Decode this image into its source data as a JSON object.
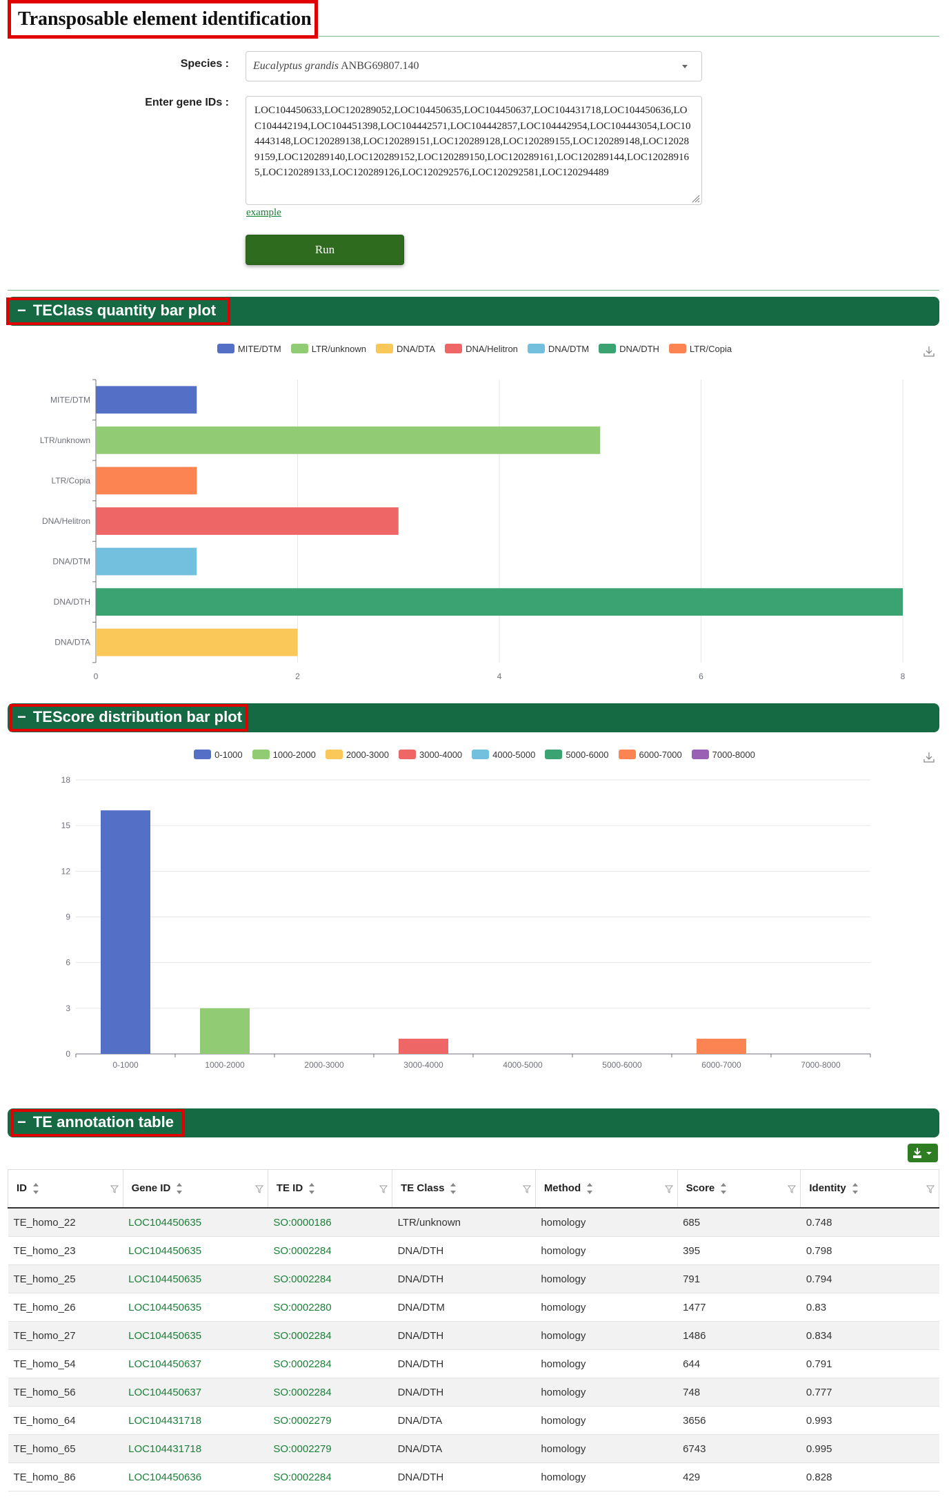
{
  "header": {
    "title": "Transposable element identification"
  },
  "form": {
    "species_label": "Species :",
    "species_value_italic": "Eucalyptus grandis",
    "species_value_rest": " ANBG69807.140",
    "gene_ids_label": "Enter gene IDs :",
    "gene_ids_value": "LOC104450633,LOC120289052,LOC104450635,LOC104450637,LOC104431718,LOC104450636,LOC104442194,LOC104451398,LOC104442571,LOC104442857,LOC104442954,LOC104443054,LOC104443148,LOC120289138,LOC120289151,LOC120289128,LOC120289155,LOC120289148,LOC120289159,LOC120289140,LOC120289152,LOC120289150,LOC120289161,LOC120289144,LOC120289165,LOC120289133,LOC120289126,LOC120292576,LOC120292581,LOC120294489",
    "example_link": "example",
    "run_button": "Run"
  },
  "sections": {
    "teclass": "TEClass quantity bar plot",
    "tescore": "TEScore distribution bar plot",
    "annotation": "TE annotation table"
  },
  "icons": {
    "collapse": "minus-icon",
    "download": "download-icon",
    "export": "export-dropdown-icon",
    "sort": "sort-icon",
    "filter": "filter-icon",
    "select_caret": "chevron-down-icon"
  },
  "chart_data": [
    {
      "type": "bar",
      "orientation": "horizontal",
      "legend": [
        "MITE/DTM",
        "LTR/unknown",
        "DNA/DTA",
        "DNA/Helitron",
        "DNA/DTM",
        "DNA/DTH",
        "LTR/Copia"
      ],
      "legend_colors": [
        "#5470c6",
        "#91cc75",
        "#fac858",
        "#ee6666",
        "#73c0de",
        "#3ba272",
        "#fc8452"
      ],
      "categories": [
        "MITE/DTM",
        "LTR/unknown",
        "LTR/Copia",
        "DNA/Helitron",
        "DNA/DTM",
        "DNA/DTH",
        "DNA/DTA"
      ],
      "values": [
        1,
        5,
        1,
        3,
        1,
        8,
        2
      ],
      "colors": [
        "#5470c6",
        "#91cc75",
        "#fc8452",
        "#ee6666",
        "#73c0de",
        "#3ba272",
        "#fac858"
      ],
      "xlim": [
        0,
        8
      ],
      "xticks": [
        0,
        2,
        4,
        6,
        8
      ],
      "grid": true,
      "legend_position": "top"
    },
    {
      "type": "bar",
      "orientation": "vertical",
      "legend": [
        "0-1000",
        "1000-2000",
        "2000-3000",
        "3000-4000",
        "4000-5000",
        "5000-6000",
        "6000-7000",
        "7000-8000"
      ],
      "legend_colors": [
        "#5470c6",
        "#91cc75",
        "#fac858",
        "#ee6666",
        "#73c0de",
        "#3ba272",
        "#fc8452",
        "#9a60b4"
      ],
      "categories": [
        "0-1000",
        "1000-2000",
        "2000-3000",
        "3000-4000",
        "4000-5000",
        "5000-6000",
        "6000-7000",
        "7000-8000"
      ],
      "values": [
        16,
        3,
        0,
        1,
        0,
        0,
        1,
        0
      ],
      "colors": [
        "#5470c6",
        "#91cc75",
        "#fac858",
        "#ee6666",
        "#73c0de",
        "#3ba272",
        "#fc8452",
        "#9a60b4"
      ],
      "ylim": [
        0,
        18
      ],
      "yticks": [
        0,
        3,
        6,
        9,
        12,
        15,
        18
      ],
      "grid": true,
      "legend_position": "top"
    }
  ],
  "table": {
    "columns": [
      "ID",
      "Gene ID",
      "TE ID",
      "TE Class",
      "Method",
      "Score",
      "Identity"
    ],
    "rows": [
      [
        "TE_homo_22",
        "LOC104450635",
        "SO:0000186",
        "LTR/unknown",
        "homology",
        "685",
        "0.748"
      ],
      [
        "TE_homo_23",
        "LOC104450635",
        "SO:0002284",
        "DNA/DTH",
        "homology",
        "395",
        "0.798"
      ],
      [
        "TE_homo_25",
        "LOC104450635",
        "SO:0002284",
        "DNA/DTH",
        "homology",
        "791",
        "0.794"
      ],
      [
        "TE_homo_26",
        "LOC104450635",
        "SO:0002280",
        "DNA/DTM",
        "homology",
        "1477",
        "0.83"
      ],
      [
        "TE_homo_27",
        "LOC104450635",
        "SO:0002284",
        "DNA/DTH",
        "homology",
        "1486",
        "0.834"
      ],
      [
        "TE_homo_54",
        "LOC104450637",
        "SO:0002284",
        "DNA/DTH",
        "homology",
        "644",
        "0.791"
      ],
      [
        "TE_homo_56",
        "LOC104450637",
        "SO:0002284",
        "DNA/DTH",
        "homology",
        "748",
        "0.777"
      ],
      [
        "TE_homo_64",
        "LOC104431718",
        "SO:0002279",
        "DNA/DTA",
        "homology",
        "3656",
        "0.993"
      ],
      [
        "TE_homo_65",
        "LOC104431718",
        "SO:0002279",
        "DNA/DTA",
        "homology",
        "6743",
        "0.995"
      ],
      [
        "TE_homo_86",
        "LOC104450636",
        "SO:0002284",
        "DNA/DTH",
        "homology",
        "429",
        "0.828"
      ]
    ]
  },
  "colors": {
    "accent": "#156a44",
    "run_button": "#2f6b1e",
    "link": "#1a7f37",
    "highlight_box": "#e00000"
  }
}
